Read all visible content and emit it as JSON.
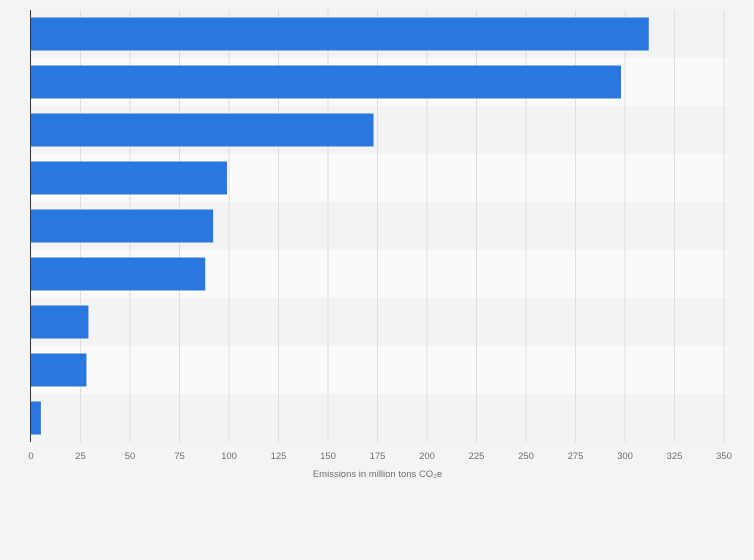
{
  "chart_data": {
    "type": "bar",
    "orientation": "horizontal",
    "categories": [
      "",
      "",
      "",
      "",
      "",
      "",
      "",
      "",
      ""
    ],
    "values": [
      312,
      298,
      173,
      99,
      92,
      88,
      29,
      28,
      5
    ],
    "xlabel": "Emissions in million tons CO₂e",
    "ylabel": "",
    "xlim": [
      0,
      350
    ],
    "xticks": [
      0,
      25,
      50,
      75,
      100,
      125,
      150,
      175,
      200,
      225,
      250,
      275,
      300,
      325,
      350
    ],
    "grid": true,
    "colors": {
      "bar": "#2a77dd",
      "band_even": "#f3f3f3",
      "band_odd": "#fafafa",
      "gridline": "#dedede",
      "axis": "#333333",
      "background": "#f4f4f4"
    }
  }
}
